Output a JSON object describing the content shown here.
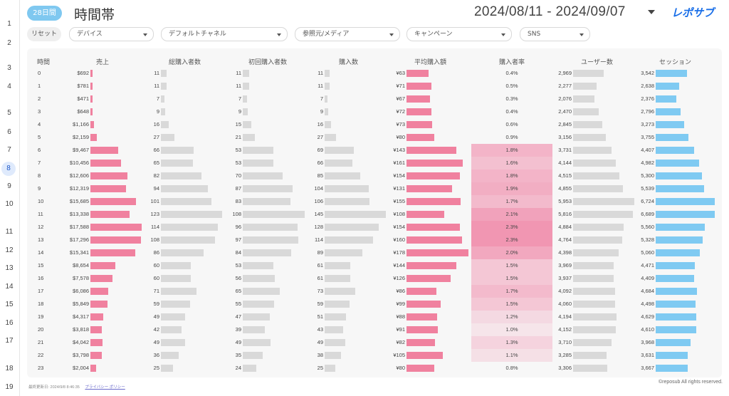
{
  "header": {
    "range_badge": "28日間",
    "title": "時間帯",
    "date_range": "2024/08/11 - 2024/09/07",
    "logo_text": "レポサブ"
  },
  "filters": {
    "reset_label": "リセット",
    "items": [
      {
        "label": "デバイス"
      },
      {
        "label": "デフォルトチャネル"
      },
      {
        "label": "参照元/メディア"
      },
      {
        "label": "キャンペーン"
      },
      {
        "label": "SNS"
      }
    ]
  },
  "row_numbers": [
    "1",
    "2",
    "3",
    "4",
    "5",
    "6",
    "7",
    "8",
    "9",
    "10",
    "11",
    "12",
    "13",
    "14",
    "15",
    "16",
    "17",
    "18",
    "19"
  ],
  "active_row_number": "8",
  "table": {
    "columns": [
      "時間",
      "売上",
      "総購入者数",
      "初回購入者数",
      "購入数",
      "平均購入額",
      "購入者率",
      "ユーザー数",
      "セッション"
    ],
    "rows": [
      {
        "hour": "0",
        "sales": "$692",
        "sales_n": 692,
        "buyers": "11",
        "buyers_n": 11,
        "first": "11",
        "first_n": 11,
        "purchases": "11",
        "purchases_n": 11,
        "avg": "¥63",
        "avg_n": 63,
        "rate": "0.4%",
        "rate_n": 0.4,
        "users": "2,969",
        "users_n": 2969,
        "sessions": "3,542",
        "sessions_n": 3542
      },
      {
        "hour": "1",
        "sales": "$781",
        "sales_n": 781,
        "buyers": "11",
        "buyers_n": 11,
        "first": "11",
        "first_n": 11,
        "purchases": "11",
        "purchases_n": 11,
        "avg": "¥71",
        "avg_n": 71,
        "rate": "0.5%",
        "rate_n": 0.5,
        "users": "2,277",
        "users_n": 2277,
        "sessions": "2,638",
        "sessions_n": 2638
      },
      {
        "hour": "2",
        "sales": "$471",
        "sales_n": 471,
        "buyers": "7",
        "buyers_n": 7,
        "first": "7",
        "first_n": 7,
        "purchases": "7",
        "purchases_n": 7,
        "avg": "¥67",
        "avg_n": 67,
        "rate": "0.3%",
        "rate_n": 0.3,
        "users": "2,076",
        "users_n": 2076,
        "sessions": "2,376",
        "sessions_n": 2376
      },
      {
        "hour": "3",
        "sales": "$648",
        "sales_n": 648,
        "buyers": "9",
        "buyers_n": 9,
        "first": "9",
        "first_n": 9,
        "purchases": "9",
        "purchases_n": 9,
        "avg": "¥72",
        "avg_n": 72,
        "rate": "0.4%",
        "rate_n": 0.4,
        "users": "2,470",
        "users_n": 2470,
        "sessions": "2,796",
        "sessions_n": 2796
      },
      {
        "hour": "4",
        "sales": "$1,166",
        "sales_n": 1166,
        "buyers": "16",
        "buyers_n": 16,
        "first": "15",
        "first_n": 15,
        "purchases": "16",
        "purchases_n": 16,
        "avg": "¥73",
        "avg_n": 73,
        "rate": "0.6%",
        "rate_n": 0.6,
        "users": "2,845",
        "users_n": 2845,
        "sessions": "3,273",
        "sessions_n": 3273
      },
      {
        "hour": "5",
        "sales": "$2,159",
        "sales_n": 2159,
        "buyers": "27",
        "buyers_n": 27,
        "first": "21",
        "first_n": 21,
        "purchases": "27",
        "purchases_n": 27,
        "avg": "¥80",
        "avg_n": 80,
        "rate": "0.9%",
        "rate_n": 0.9,
        "users": "3,156",
        "users_n": 3156,
        "sessions": "3,755",
        "sessions_n": 3755
      },
      {
        "hour": "6",
        "sales": "$9,467",
        "sales_n": 9467,
        "buyers": "66",
        "buyers_n": 66,
        "first": "53",
        "first_n": 53,
        "purchases": "69",
        "purchases_n": 69,
        "avg": "¥143",
        "avg_n": 143,
        "rate": "1.8%",
        "rate_n": 1.8,
        "users": "3,731",
        "users_n": 3731,
        "sessions": "4,407",
        "sessions_n": 4407
      },
      {
        "hour": "7",
        "sales": "$10,456",
        "sales_n": 10456,
        "buyers": "65",
        "buyers_n": 65,
        "first": "53",
        "first_n": 53,
        "purchases": "66",
        "purchases_n": 66,
        "avg": "¥161",
        "avg_n": 161,
        "rate": "1.6%",
        "rate_n": 1.6,
        "users": "4,144",
        "users_n": 4144,
        "sessions": "4,982",
        "sessions_n": 4982
      },
      {
        "hour": "8",
        "sales": "$12,606",
        "sales_n": 12606,
        "buyers": "82",
        "buyers_n": 82,
        "first": "70",
        "first_n": 70,
        "purchases": "85",
        "purchases_n": 85,
        "avg": "¥154",
        "avg_n": 154,
        "rate": "1.8%",
        "rate_n": 1.8,
        "users": "4,515",
        "users_n": 4515,
        "sessions": "5,300",
        "sessions_n": 5300
      },
      {
        "hour": "9",
        "sales": "$12,319",
        "sales_n": 12319,
        "buyers": "94",
        "buyers_n": 94,
        "first": "87",
        "first_n": 87,
        "purchases": "104",
        "purchases_n": 104,
        "avg": "¥131",
        "avg_n": 131,
        "rate": "1.9%",
        "rate_n": 1.9,
        "users": "4,855",
        "users_n": 4855,
        "sessions": "5,539",
        "sessions_n": 5539
      },
      {
        "hour": "10",
        "sales": "$15,685",
        "sales_n": 15685,
        "buyers": "101",
        "buyers_n": 101,
        "first": "83",
        "first_n": 83,
        "purchases": "106",
        "purchases_n": 106,
        "avg": "¥155",
        "avg_n": 155,
        "rate": "1.7%",
        "rate_n": 1.7,
        "users": "5,953",
        "users_n": 5953,
        "sessions": "6,724",
        "sessions_n": 6724
      },
      {
        "hour": "11",
        "sales": "$13,338",
        "sales_n": 13338,
        "buyers": "123",
        "buyers_n": 123,
        "first": "108",
        "first_n": 108,
        "purchases": "145",
        "purchases_n": 145,
        "avg": "¥108",
        "avg_n": 108,
        "rate": "2.1%",
        "rate_n": 2.1,
        "users": "5,816",
        "users_n": 5816,
        "sessions": "6,689",
        "sessions_n": 6689
      },
      {
        "hour": "12",
        "sales": "$17,588",
        "sales_n": 17588,
        "buyers": "114",
        "buyers_n": 114,
        "first": "96",
        "first_n": 96,
        "purchases": "128",
        "purchases_n": 128,
        "avg": "¥154",
        "avg_n": 154,
        "rate": "2.3%",
        "rate_n": 2.3,
        "users": "4,884",
        "users_n": 4884,
        "sessions": "5,560",
        "sessions_n": 5560
      },
      {
        "hour": "13",
        "sales": "$17,296",
        "sales_n": 17296,
        "buyers": "108",
        "buyers_n": 108,
        "first": "97",
        "first_n": 97,
        "purchases": "114",
        "purchases_n": 114,
        "avg": "¥160",
        "avg_n": 160,
        "rate": "2.3%",
        "rate_n": 2.3,
        "users": "4,764",
        "users_n": 4764,
        "sessions": "5,328",
        "sessions_n": 5328
      },
      {
        "hour": "14",
        "sales": "$15,341",
        "sales_n": 15341,
        "buyers": "86",
        "buyers_n": 86,
        "first": "84",
        "first_n": 84,
        "purchases": "89",
        "purchases_n": 89,
        "avg": "¥178",
        "avg_n": 178,
        "rate": "2.0%",
        "rate_n": 2.0,
        "users": "4,398",
        "users_n": 4398,
        "sessions": "5,060",
        "sessions_n": 5060
      },
      {
        "hour": "15",
        "sales": "$8,654",
        "sales_n": 8654,
        "buyers": "60",
        "buyers_n": 60,
        "first": "53",
        "first_n": 53,
        "purchases": "61",
        "purchases_n": 61,
        "avg": "¥144",
        "avg_n": 144,
        "rate": "1.5%",
        "rate_n": 1.5,
        "users": "3,969",
        "users_n": 3969,
        "sessions": "4,471",
        "sessions_n": 4471
      },
      {
        "hour": "16",
        "sales": "$7,578",
        "sales_n": 7578,
        "buyers": "60",
        "buyers_n": 60,
        "first": "56",
        "first_n": 56,
        "purchases": "61",
        "purchases_n": 61,
        "avg": "¥126",
        "avg_n": 126,
        "rate": "1.5%",
        "rate_n": 1.5,
        "users": "3,937",
        "users_n": 3937,
        "sessions": "4,409",
        "sessions_n": 4409
      },
      {
        "hour": "17",
        "sales": "$6,086",
        "sales_n": 6086,
        "buyers": "71",
        "buyers_n": 71,
        "first": "65",
        "first_n": 65,
        "purchases": "73",
        "purchases_n": 73,
        "avg": "¥86",
        "avg_n": 86,
        "rate": "1.7%",
        "rate_n": 1.7,
        "users": "4,092",
        "users_n": 4092,
        "sessions": "4,684",
        "sessions_n": 4684
      },
      {
        "hour": "18",
        "sales": "$5,849",
        "sales_n": 5849,
        "buyers": "59",
        "buyers_n": 59,
        "first": "55",
        "first_n": 55,
        "purchases": "59",
        "purchases_n": 59,
        "avg": "¥99",
        "avg_n": 99,
        "rate": "1.5%",
        "rate_n": 1.5,
        "users": "4,060",
        "users_n": 4060,
        "sessions": "4,498",
        "sessions_n": 4498
      },
      {
        "hour": "19",
        "sales": "$4,317",
        "sales_n": 4317,
        "buyers": "49",
        "buyers_n": 49,
        "first": "47",
        "first_n": 47,
        "purchases": "51",
        "purchases_n": 51,
        "avg": "¥88",
        "avg_n": 88,
        "rate": "1.2%",
        "rate_n": 1.2,
        "users": "4,194",
        "users_n": 4194,
        "sessions": "4,629",
        "sessions_n": 4629
      },
      {
        "hour": "20",
        "sales": "$3,818",
        "sales_n": 3818,
        "buyers": "42",
        "buyers_n": 42,
        "first": "39",
        "first_n": 39,
        "purchases": "43",
        "purchases_n": 43,
        "avg": "¥91",
        "avg_n": 91,
        "rate": "1.0%",
        "rate_n": 1.0,
        "users": "4,152",
        "users_n": 4152,
        "sessions": "4,610",
        "sessions_n": 4610
      },
      {
        "hour": "21",
        "sales": "$4,042",
        "sales_n": 4042,
        "buyers": "49",
        "buyers_n": 49,
        "first": "49",
        "first_n": 49,
        "purchases": "49",
        "purchases_n": 49,
        "avg": "¥82",
        "avg_n": 82,
        "rate": "1.3%",
        "rate_n": 1.3,
        "users": "3,710",
        "users_n": 3710,
        "sessions": "3,968",
        "sessions_n": 3968
      },
      {
        "hour": "22",
        "sales": "$3,798",
        "sales_n": 3798,
        "buyers": "36",
        "buyers_n": 36,
        "first": "35",
        "first_n": 35,
        "purchases": "38",
        "purchases_n": 38,
        "avg": "¥105",
        "avg_n": 105,
        "rate": "1.1%",
        "rate_n": 1.1,
        "users": "3,285",
        "users_n": 3285,
        "sessions": "3,631",
        "sessions_n": 3631
      },
      {
        "hour": "23",
        "sales": "$2,004",
        "sales_n": 2004,
        "buyers": "25",
        "buyers_n": 25,
        "first": "24",
        "first_n": 24,
        "purchases": "25",
        "purchases_n": 25,
        "avg": "¥80",
        "avg_n": 80,
        "rate": "0.8%",
        "rate_n": 0.8,
        "users": "3,306",
        "users_n": 3306,
        "sessions": "3,667",
        "sessions_n": 3667
      }
    ]
  },
  "footer": {
    "updated": "最終更新日: 2024/9/8 8:46:35",
    "privacy_link": "プライバシー ポリシー",
    "copyright": "©reposub All rights reserved."
  },
  "colors": {
    "badge": "#7fc8f0",
    "bar_pink": "#f0819f",
    "bar_gray": "#d9d9d9",
    "bar_blue": "#7fcaf2",
    "heat_rgb": "238,110,150",
    "logo": "#1a6fe8"
  }
}
